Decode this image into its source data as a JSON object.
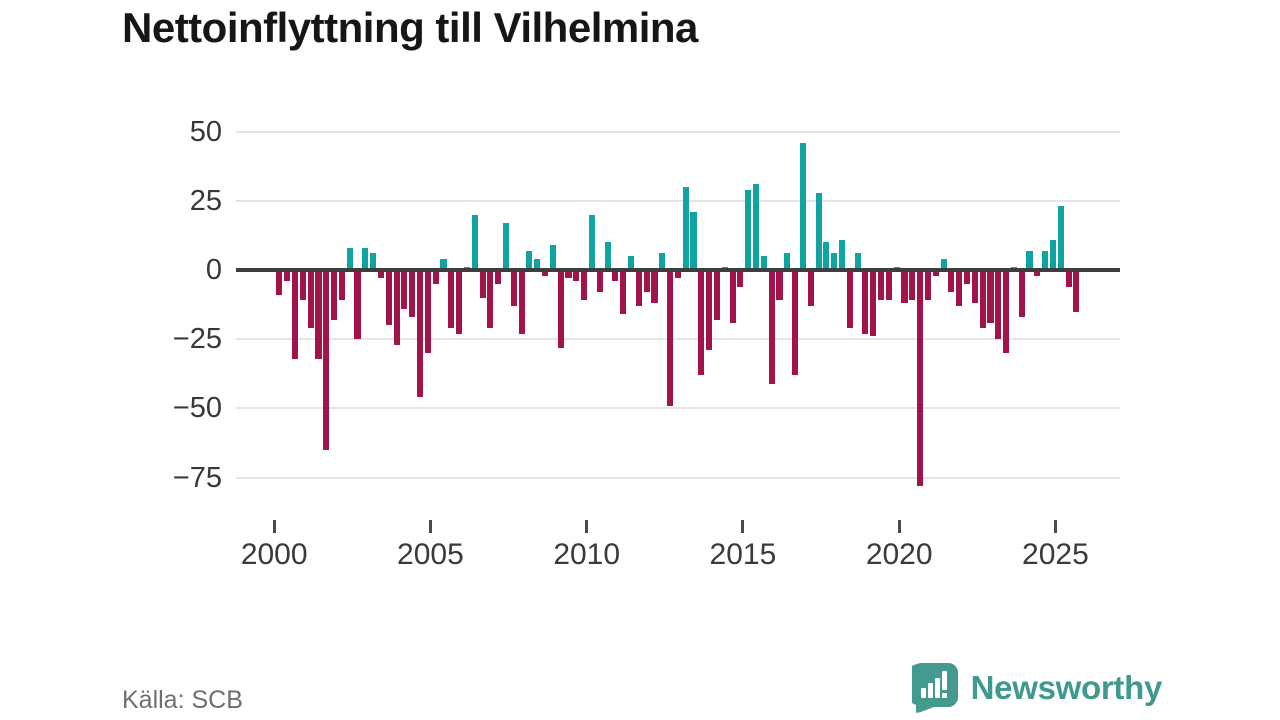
{
  "title": "Nettoinflyttning till Vilhelmina",
  "source": "Källa: SCB",
  "brand": {
    "name": "Newsworthy",
    "color": "#3f998f",
    "icon": "bar-chart-speech-bubble"
  },
  "colors": {
    "positive_bar": "#0fa3a1",
    "negative_bar": "#a2134b",
    "zero_axis": "#3e3e3e",
    "gridline": "#e4e4e4",
    "tick_text": "#383838",
    "source_text": "#6f6f6f"
  },
  "chart_data": {
    "type": "bar",
    "title": "Nettoinflyttning till Vilhelmina",
    "xlabel": "",
    "ylabel": "",
    "interval": "quarterly",
    "period_start": "2000-Q1",
    "period_end": "2025-Q3",
    "x_tick_labels": [
      "2000",
      "2005",
      "2010",
      "2015",
      "2020",
      "2025"
    ],
    "y_tick_values": [
      50,
      25,
      0,
      -25,
      -50,
      -75
    ],
    "y_tick_labels": [
      "50",
      "25",
      "0",
      "−25",
      "−50",
      "−75"
    ],
    "ylim": [
      -85,
      55
    ],
    "grid": "horizontal",
    "legend": "none",
    "values": [
      -9,
      -4,
      -32,
      -11,
      -21,
      -32,
      -65,
      -18,
      -11,
      8,
      -25,
      8,
      6,
      -3,
      -20,
      -27,
      -14,
      -17,
      -46,
      -30,
      -5,
      4,
      -21,
      -23,
      1,
      20,
      -10,
      -21,
      -5,
      17,
      -13,
      -23,
      7,
      4,
      -2,
      9,
      -28,
      -3,
      -4,
      -11,
      20,
      -8,
      10,
      -4,
      -16,
      5,
      -13,
      -8,
      -12,
      6,
      -49,
      -3,
      30,
      21,
      -38,
      -29,
      -18,
      1,
      -19,
      -6,
      29,
      31,
      5,
      -41,
      -11,
      6,
      -38,
      46,
      -13,
      28,
      10,
      6,
      11,
      -21,
      6,
      -23,
      -24,
      -11,
      -11,
      1,
      -12,
      -11,
      -78,
      -11,
      -2,
      4,
      -8,
      -13,
      -5,
      -12,
      -21,
      -19,
      -25,
      -30,
      1,
      -17,
      7,
      -2,
      7,
      11,
      23,
      -6,
      -15
    ]
  }
}
